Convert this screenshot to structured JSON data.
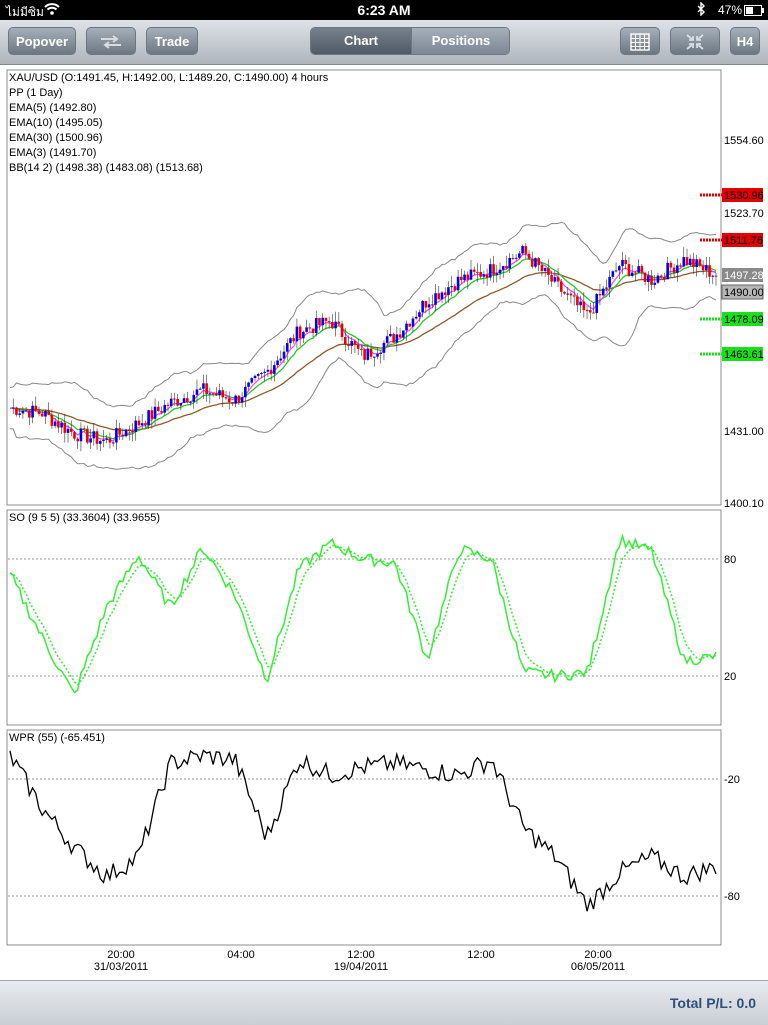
{
  "status_bar": {
    "carrier": "ไม่มีซิม",
    "time": "6:23 AM",
    "battery": "47%",
    "battery_level": 0.47
  },
  "toolbar": {
    "popover_label": "Popover",
    "trade_label": "Trade",
    "tabs": [
      {
        "label": "Chart",
        "active": true
      },
      {
        "label": "Positions",
        "active": false
      }
    ],
    "timeframe_label": "H4"
  },
  "main_chart": {
    "legend": [
      "XAU/USD (O:1491.45, H:1492.00, L:1489.20, C:1490.00) 4 hours",
      "PP (1 Day)",
      "EMA(5) (1492.80)",
      "EMA(10) (1495.05)",
      "EMA(30) (1500.96)",
      "EMA(3) (1491.70)",
      "BB(14 2) (1498.38) (1483.08) (1513.68)"
    ],
    "y_ticks": [
      "1554.60",
      "1523.70",
      "1431.00",
      "1400.10"
    ],
    "price_tags": [
      {
        "label": "1530.96",
        "color": "#e30000"
      },
      {
        "label": "1511.76",
        "color": "#e30000"
      },
      {
        "label": "1497.28",
        "color": "#8a8a8a"
      },
      {
        "label": "1490.00",
        "color": "#b5b5b5"
      },
      {
        "label": "1478.09",
        "color": "#19e019"
      },
      {
        "label": "1463.61",
        "color": "#19e019"
      }
    ]
  },
  "so_panel": {
    "legend": "SO (9 5 5) (33.3604) (33.9655)",
    "y_ticks": [
      "80",
      "20"
    ]
  },
  "wpr_panel": {
    "legend": "WPR (55) (-65.451)",
    "y_ticks": [
      "-20",
      "-80"
    ]
  },
  "x_axis": [
    {
      "time": "20:00",
      "date": "31/03/2011"
    },
    {
      "time": "04:00",
      "date": ""
    },
    {
      "time": "12:00",
      "date": "19/04/2011"
    },
    {
      "time": "12:00",
      "date": ""
    },
    {
      "time": "20:00",
      "date": "06/05/2011"
    }
  ],
  "footer": {
    "total_pl": "Total P/L: 0.0"
  },
  "colors": {
    "bull": "#0000ee",
    "bear": "#ee0000",
    "ema_fast": "#ff40ff",
    "ema_mid": "#22cc22",
    "ema_slow": "#8b5a2b",
    "bb": "#888888",
    "so": "#33ee33",
    "wpr": "#000000"
  },
  "chart_data": {
    "type": "line",
    "main_price": {
      "x": [
        0,
        10,
        20,
        30,
        40,
        50,
        60,
        70,
        80,
        90,
        100,
        110,
        120,
        130,
        140,
        150,
        160,
        170,
        180,
        190,
        200,
        210,
        220
      ],
      "close": [
        1438,
        1436,
        1428,
        1425,
        1432,
        1440,
        1445,
        1441,
        1452,
        1468,
        1472,
        1458,
        1466,
        1480,
        1488,
        1492,
        1499,
        1486,
        1474,
        1494,
        1488,
        1496,
        1490
      ],
      "ylim": [
        1400.1,
        1570
      ]
    },
    "so": {
      "x": [
        0,
        10,
        20,
        30,
        40,
        50,
        60,
        70,
        80,
        90,
        100,
        110,
        120,
        130,
        140,
        150,
        160,
        170,
        180,
        190,
        200,
        210,
        220
      ],
      "k": [
        72,
        40,
        10,
        55,
        82,
        55,
        86,
        62,
        18,
        75,
        88,
        80,
        78,
        28,
        85,
        80,
        22,
        20,
        22,
        90,
        84,
        28,
        30
      ],
      "ylim": [
        0,
        100
      ]
    },
    "wpr": {
      "x": [
        0,
        10,
        20,
        30,
        40,
        50,
        60,
        70,
        80,
        90,
        100,
        110,
        120,
        130,
        140,
        150,
        160,
        170,
        180,
        190,
        200,
        210,
        220
      ],
      "values": [
        -8,
        -35,
        -55,
        -70,
        -60,
        -12,
        -8,
        -10,
        -50,
        -10,
        -18,
        -14,
        -12,
        -15,
        -18,
        -10,
        -45,
        -60,
        -85,
        -68,
        -60,
        -70,
        -65
      ],
      "ylim": [
        -100,
        0
      ]
    }
  }
}
